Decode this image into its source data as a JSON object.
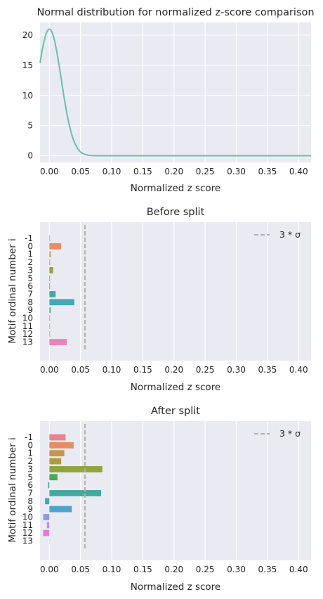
{
  "chart_data": [
    {
      "type": "line",
      "title": "Normal distribution for normalized z-score comparison",
      "xlabel": "Normalized z score",
      "ylabel": "",
      "xlim": [
        -0.015,
        0.42
      ],
      "ylim": [
        -1.1,
        22.1
      ],
      "xticks": [
        "0.00",
        "0.05",
        "0.10",
        "0.15",
        "0.20",
        "0.25",
        "0.30",
        "0.35",
        "0.40"
      ],
      "yticks": [
        "0",
        "5",
        "10",
        "15",
        "20"
      ],
      "grid": true,
      "color": "#66c2a5",
      "distribution": {
        "mean": 0.0,
        "std": 0.019,
        "peak": 21.0
      }
    },
    {
      "type": "bar",
      "orientation": "horizontal",
      "title": "Before split",
      "xlabel": "Normalized z score",
      "ylabel": "Motif ordinal number i",
      "xlim": [
        -0.015,
        0.42
      ],
      "xticks": [
        "0.00",
        "0.05",
        "0.10",
        "0.15",
        "0.20",
        "0.25",
        "0.30",
        "0.35",
        "0.40"
      ],
      "grid": true,
      "legend": {
        "position": "top-right",
        "label": "3 * σ"
      },
      "threshold": 0.057,
      "categories": [
        "-1",
        "0",
        "1",
        "2",
        "3",
        "5",
        "6",
        "7",
        "8",
        "9",
        "10",
        "11",
        "12",
        "13"
      ],
      "values": [
        0.001,
        0.019,
        0.002,
        0.001,
        0.006,
        0.001,
        0.001,
        0.01,
        0.04,
        0.002,
        0.001,
        0.001,
        0.001,
        0.028
      ],
      "colors": [
        "#e8848d",
        "#e38f65",
        "#c6974b",
        "#ab9d3e",
        "#8ea53c",
        "#4caa56",
        "#42ac8a",
        "#43aa9f",
        "#45a7b5",
        "#4ea4cb",
        "#8a9ce5",
        "#c08de5",
        "#e17cd6",
        "#e884b7"
      ]
    },
    {
      "type": "bar",
      "orientation": "horizontal",
      "title": "After split",
      "xlabel": "Normalized z score",
      "ylabel": "Motif ordinal number i",
      "xlim": [
        -0.015,
        0.42
      ],
      "xticks": [
        "0.00",
        "0.05",
        "0.10",
        "0.15",
        "0.20",
        "0.25",
        "0.30",
        "0.35",
        "0.40"
      ],
      "grid": true,
      "legend": {
        "position": "top-right",
        "label": "3 * σ"
      },
      "threshold": 0.057,
      "categories": [
        "-1",
        "0",
        "1",
        "2",
        "3",
        "5",
        "6",
        "7",
        "8",
        "9",
        "10",
        "11",
        "12",
        "13"
      ],
      "values": [
        0.026,
        0.039,
        0.024,
        0.019,
        0.085,
        0.013,
        -0.002,
        0.083,
        -0.007,
        0.036,
        -0.01,
        -0.004,
        -0.01,
        0.0
      ],
      "colors": [
        "#e8848d",
        "#e38f65",
        "#c6974b",
        "#ab9d3e",
        "#8ea53c",
        "#4caa56",
        "#42ac8a",
        "#43aa9f",
        "#45a7b5",
        "#4ea4cb",
        "#8a9ce5",
        "#c08de5",
        "#e17cd6",
        "#e884b7"
      ]
    }
  ]
}
